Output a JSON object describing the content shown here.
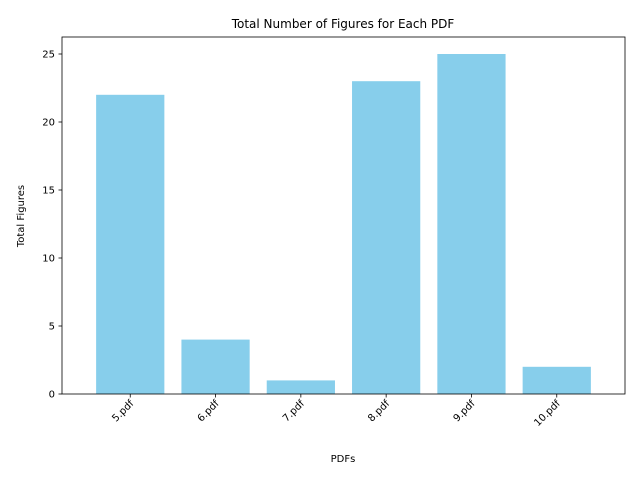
{
  "chart_data": {
    "type": "bar",
    "title": "Total Number of Figures for Each PDF",
    "xlabel": "PDFs",
    "ylabel": "Total Figures",
    "categories": [
      "5.pdf",
      "6.pdf",
      "7.pdf",
      "8.pdf",
      "9.pdf",
      "10.pdf"
    ],
    "values": [
      22,
      4,
      1,
      23,
      25,
      2
    ],
    "ylim": [
      0,
      26.25
    ],
    "yticks": [
      0,
      5,
      10,
      15,
      20,
      25
    ],
    "bar_color": "#87ceeb",
    "grid": false,
    "x_tick_rotation": 45
  }
}
